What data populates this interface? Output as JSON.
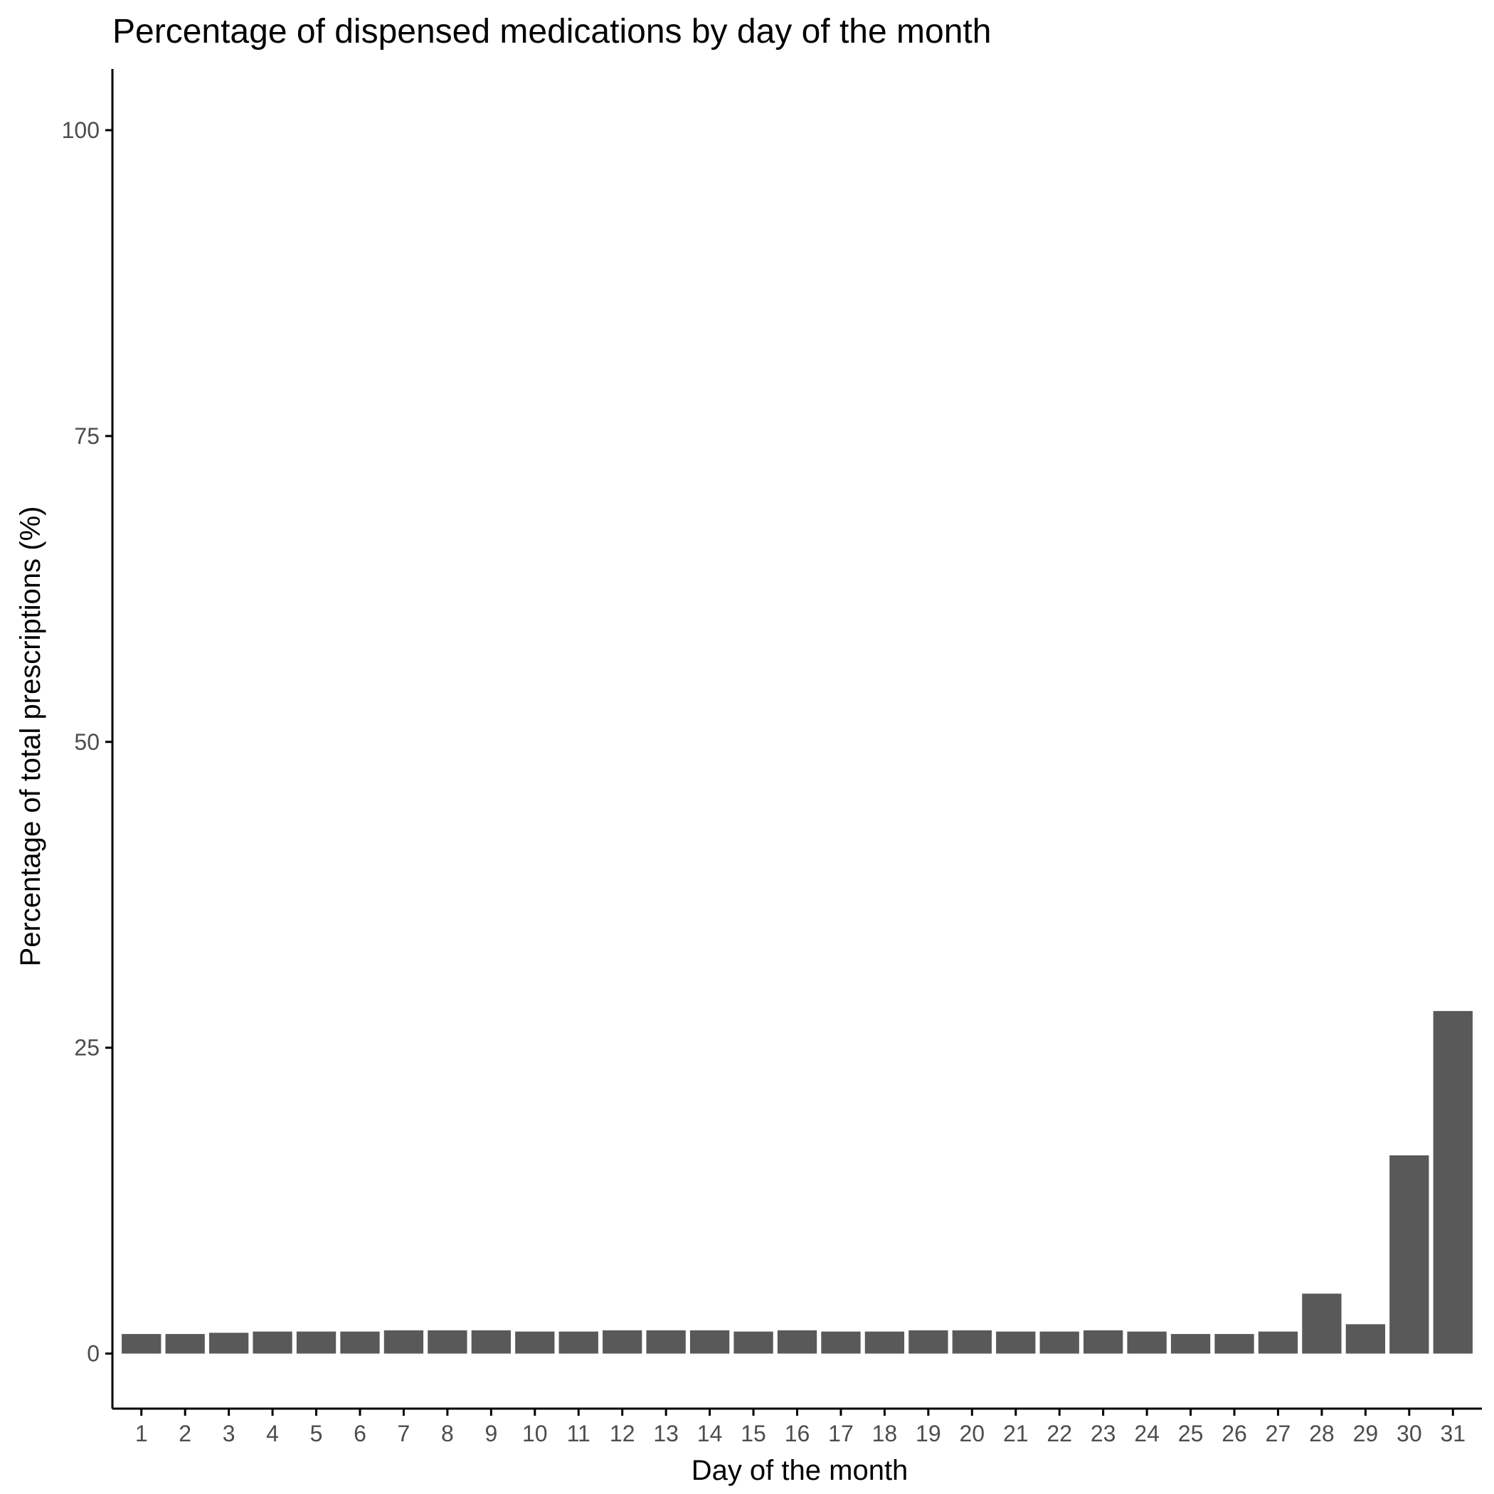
{
  "chart_data": {
    "type": "bar",
    "title": "Percentage of dispensed medications by day of the month",
    "xlabel": "Day of the month",
    "ylabel": "Percentage of total prescriptions (%)",
    "categories": [
      "1",
      "2",
      "3",
      "4",
      "5",
      "6",
      "7",
      "8",
      "9",
      "10",
      "11",
      "12",
      "13",
      "14",
      "15",
      "16",
      "17",
      "18",
      "19",
      "20",
      "21",
      "22",
      "23",
      "24",
      "25",
      "26",
      "27",
      "28",
      "29",
      "30",
      "31"
    ],
    "values": [
      1.6,
      1.6,
      1.7,
      1.8,
      1.8,
      1.8,
      1.9,
      1.9,
      1.9,
      1.8,
      1.8,
      1.9,
      1.9,
      1.9,
      1.8,
      1.9,
      1.8,
      1.8,
      1.9,
      1.9,
      1.8,
      1.8,
      1.9,
      1.8,
      1.6,
      1.6,
      1.8,
      4.9,
      2.4,
      16.2,
      28.0
    ],
    "yticks": [
      0,
      25,
      50,
      75,
      100
    ],
    "ylim": [
      -4.5,
      105
    ],
    "grid": false,
    "bar_color": "#595959"
  }
}
